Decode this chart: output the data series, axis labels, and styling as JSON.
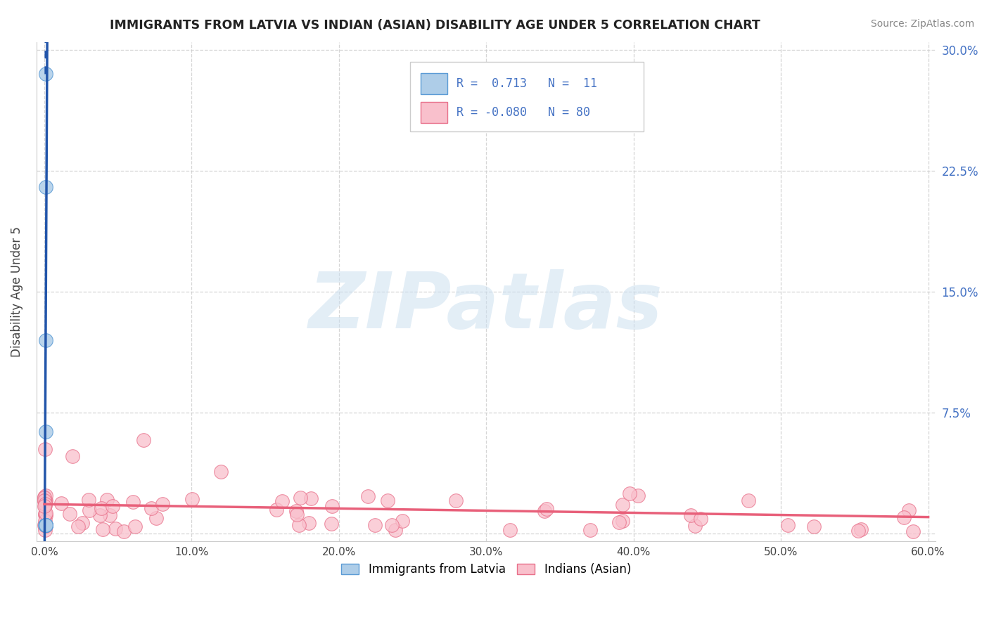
{
  "title": "IMMIGRANTS FROM LATVIA VS INDIAN (ASIAN) DISABILITY AGE UNDER 5 CORRELATION CHART",
  "source": "Source: ZipAtlas.com",
  "ylabel_label": "Disability Age Under 5",
  "xlim": [
    -0.005,
    0.605
  ],
  "ylim": [
    -0.005,
    0.305
  ],
  "xticks": [
    0.0,
    0.1,
    0.2,
    0.3,
    0.4,
    0.5,
    0.6
  ],
  "yticks": [
    0.0,
    0.075,
    0.15,
    0.225,
    0.3
  ],
  "xticklabels": [
    "0.0%",
    "10.0%",
    "20.0%",
    "30.0%",
    "40.0%",
    "50.0%",
    "60.0%"
  ],
  "right_yticklabels": [
    "",
    "7.5%",
    "15.0%",
    "22.5%",
    "30.0%"
  ],
  "legend_text1": "R =  0.713   N =  11",
  "legend_text2": "R = -0.080   N = 80",
  "blue_fill": "#aecde8",
  "blue_edge": "#5b9bd5",
  "pink_fill": "#f9c0cc",
  "pink_edge": "#e8708a",
  "trend_blue_color": "#2255aa",
  "trend_pink_color": "#e8607a",
  "watermark": "ZIPatlas",
  "bottom_legend_labels": [
    "Immigrants from Latvia",
    "Indians (Asian)"
  ],
  "blue_x": [
    0.0008,
    0.001,
    0.0012,
    0.0008,
    0.001,
    0.0009,
    0.0011,
    0.0007,
    0.0009,
    0.0011,
    0.001
  ],
  "blue_y": [
    0.285,
    0.215,
    0.005,
    0.12,
    0.063,
    0.005,
    0.005,
    0.005,
    0.005,
    0.005,
    0.005
  ]
}
